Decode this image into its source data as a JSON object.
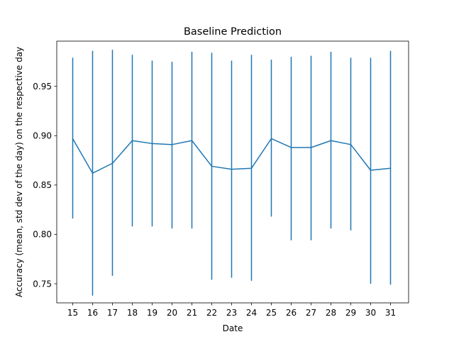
{
  "chart_data": {
    "type": "line",
    "title": "Baseline Prediction",
    "xlabel": "Date",
    "ylabel": "Accuracy (mean, std dev of the day) on the respective day",
    "x": [
      "15",
      "16",
      "17",
      "18",
      "19",
      "20",
      "21",
      "22",
      "23",
      "24",
      "25",
      "26",
      "27",
      "28",
      "29",
      "30",
      "31"
    ],
    "series": [
      {
        "values": [
          0.897,
          0.862,
          0.872,
          0.895,
          0.892,
          0.891,
          0.895,
          0.869,
          0.866,
          0.867,
          0.897,
          0.888,
          0.888,
          0.895,
          0.891,
          0.865,
          0.867
        ],
        "err_low": [
          0.816,
          0.738,
          0.758,
          0.808,
          0.808,
          0.806,
          0.806,
          0.754,
          0.756,
          0.753,
          0.818,
          0.794,
          0.794,
          0.806,
          0.804,
          0.75,
          0.749
        ],
        "err_high": [
          0.979,
          0.986,
          0.987,
          0.982,
          0.976,
          0.975,
          0.985,
          0.984,
          0.976,
          0.982,
          0.977,
          0.98,
          0.981,
          0.985,
          0.979,
          0.979,
          0.986
        ],
        "color": "#1f77b4"
      }
    ],
    "yticks": [
      0.75,
      0.8,
      0.85,
      0.9,
      0.95
    ],
    "ylim": [
      0.7306,
      0.9958
    ],
    "grid": false,
    "legend": "none"
  }
}
